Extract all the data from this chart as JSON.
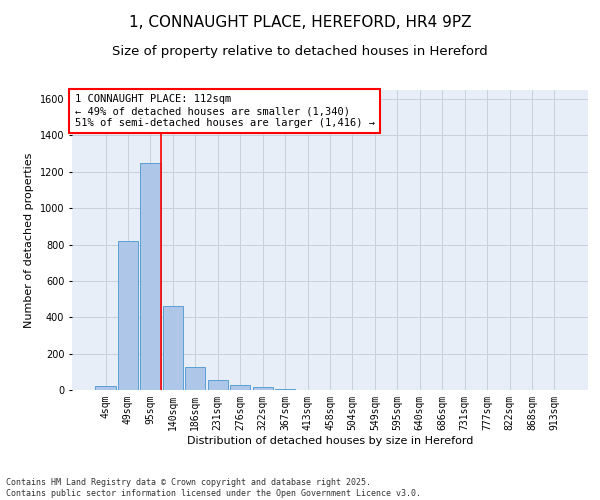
{
  "title_line1": "1, CONNAUGHT PLACE, HEREFORD, HR4 9PZ",
  "title_line2": "Size of property relative to detached houses in Hereford",
  "xlabel": "Distribution of detached houses by size in Hereford",
  "ylabel": "Number of detached properties",
  "categories": [
    "4sqm",
    "49sqm",
    "95sqm",
    "140sqm",
    "186sqm",
    "231sqm",
    "276sqm",
    "322sqm",
    "367sqm",
    "413sqm",
    "458sqm",
    "504sqm",
    "549sqm",
    "595sqm",
    "640sqm",
    "686sqm",
    "731sqm",
    "777sqm",
    "822sqm",
    "868sqm",
    "913sqm"
  ],
  "values": [
    22,
    820,
    1250,
    460,
    125,
    55,
    25,
    15,
    8,
    0,
    0,
    0,
    0,
    0,
    0,
    0,
    0,
    0,
    0,
    0,
    0
  ],
  "bar_color": "#aec6e8",
  "bar_edge_color": "#5a9fd4",
  "vline_color": "red",
  "vline_position": 2.45,
  "annotation_text": "1 CONNAUGHT PLACE: 112sqm\n← 49% of detached houses are smaller (1,340)\n51% of semi-detached houses are larger (1,416) →",
  "annotation_box_color": "red",
  "annotation_box_facecolor": "white",
  "ylim": [
    0,
    1650
  ],
  "yticks": [
    0,
    200,
    400,
    600,
    800,
    1000,
    1200,
    1400,
    1600
  ],
  "grid_color": "#c8d0dc",
  "background_color": "#e8eef7",
  "footer_text": "Contains HM Land Registry data © Crown copyright and database right 2025.\nContains public sector information licensed under the Open Government Licence v3.0.",
  "title_fontsize": 11,
  "subtitle_fontsize": 9.5,
  "axis_label_fontsize": 8,
  "tick_fontsize": 7,
  "annotation_fontsize": 7.5,
  "footer_fontsize": 6
}
